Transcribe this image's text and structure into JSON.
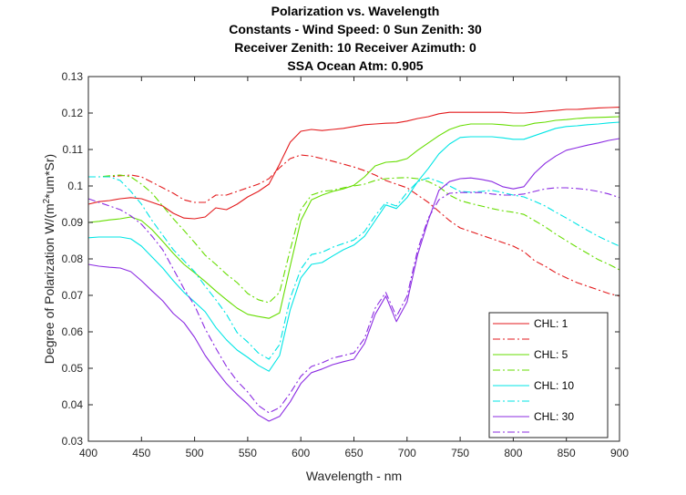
{
  "chart_data": {
    "type": "line",
    "title": [
      "Polarization vs. Wavelength",
      "Constants - Wind Speed: 0 Sun Zenith: 30",
      "Receiver Zenith: 10 Receiver Azimuth: 0",
      "SSA Ocean Atm: 0.905"
    ],
    "xlabel": "Wavelength - nm",
    "ylabel": "Degree of Polarization W/(m²*um*Sr)",
    "xlim": [
      400,
      900
    ],
    "ylim": [
      0.03,
      0.13
    ],
    "xticks": [
      "400",
      "450",
      "500",
      "550",
      "600",
      "650",
      "700",
      "750",
      "800",
      "850",
      "900"
    ],
    "yticks": [
      "0.03",
      "0.04",
      "0.05",
      "0.06",
      "0.07",
      "0.08",
      "0.09",
      "0.1",
      "0.11",
      "0.12",
      "0.13"
    ],
    "grid": false,
    "legend_position": "bottom-right",
    "series": [
      {
        "name": "CHL: 1",
        "color": "#e31a1c",
        "style": "solid",
        "x": [
          400,
          410,
          420,
          430,
          440,
          450,
          460,
          470,
          480,
          490,
          500,
          510,
          520,
          530,
          540,
          550,
          560,
          570,
          580,
          590,
          600,
          610,
          620,
          630,
          640,
          650,
          660,
          670,
          680,
          690,
          700,
          710,
          720,
          730,
          740,
          750,
          760,
          770,
          780,
          790,
          800,
          810,
          820,
          830,
          840,
          850,
          860,
          870,
          880,
          890,
          900
        ],
        "y": [
          0.095,
          0.0957,
          0.096,
          0.0965,
          0.0968,
          0.0965,
          0.0955,
          0.0945,
          0.0925,
          0.0912,
          0.091,
          0.0915,
          0.094,
          0.0935,
          0.095,
          0.097,
          0.0985,
          0.1005,
          0.106,
          0.112,
          0.115,
          0.1155,
          0.1152,
          0.1155,
          0.1158,
          0.1163,
          0.1168,
          0.117,
          0.1172,
          0.1173,
          0.1178,
          0.1185,
          0.119,
          0.1198,
          0.1202,
          0.1202,
          0.1202,
          0.1202,
          0.1202,
          0.1202,
          0.12,
          0.12,
          0.1202,
          0.1205,
          0.1207,
          0.121,
          0.121,
          0.1212,
          0.1214,
          0.1215,
          0.1216
        ]
      },
      {
        "name": "",
        "color": "#e31a1c",
        "style": "dashdot",
        "x": [
          400,
          410,
          420,
          430,
          440,
          450,
          460,
          470,
          480,
          490,
          500,
          510,
          520,
          530,
          540,
          550,
          560,
          570,
          580,
          590,
          600,
          610,
          620,
          630,
          640,
          650,
          660,
          670,
          680,
          690,
          700,
          710,
          720,
          730,
          740,
          750,
          760,
          770,
          780,
          790,
          800,
          810,
          820,
          830,
          840,
          850,
          860,
          870,
          880,
          890,
          900
        ],
        "y": [
          0.1025,
          0.1025,
          0.1025,
          0.1028,
          0.103,
          0.1025,
          0.101,
          0.0995,
          0.098,
          0.0962,
          0.0955,
          0.0955,
          0.0975,
          0.0975,
          0.0985,
          0.0995,
          0.1005,
          0.102,
          0.105,
          0.1075,
          0.1085,
          0.1082,
          0.1075,
          0.1068,
          0.106,
          0.1052,
          0.1042,
          0.103,
          0.1015,
          0.1005,
          0.0995,
          0.0975,
          0.0955,
          0.093,
          0.0905,
          0.0885,
          0.0875,
          0.0865,
          0.0855,
          0.0845,
          0.0835,
          0.082,
          0.0795,
          0.078,
          0.0762,
          0.0748,
          0.0735,
          0.0725,
          0.0715,
          0.0705,
          0.0698
        ]
      },
      {
        "name": "CHL: 5",
        "color": "#66dd00",
        "style": "solid",
        "x": [
          400,
          410,
          420,
          430,
          440,
          450,
          460,
          470,
          480,
          490,
          500,
          510,
          520,
          530,
          540,
          550,
          560,
          570,
          580,
          590,
          600,
          610,
          620,
          630,
          640,
          650,
          660,
          670,
          680,
          690,
          700,
          710,
          720,
          730,
          740,
          750,
          760,
          770,
          780,
          790,
          800,
          810,
          820,
          830,
          840,
          850,
          860,
          870,
          880,
          890,
          900
        ],
        "y": [
          0.09,
          0.0903,
          0.0907,
          0.091,
          0.0915,
          0.0905,
          0.088,
          0.0848,
          0.0815,
          0.0785,
          0.0762,
          0.0738,
          0.0712,
          0.0688,
          0.0665,
          0.0648,
          0.0642,
          0.0637,
          0.0652,
          0.078,
          0.0905,
          0.0962,
          0.0975,
          0.0985,
          0.0992,
          0.1002,
          0.1025,
          0.1055,
          0.1065,
          0.1067,
          0.1075,
          0.1098,
          0.1118,
          0.1138,
          0.1155,
          0.1165,
          0.117,
          0.117,
          0.117,
          0.1168,
          0.1165,
          0.1165,
          0.1172,
          0.1175,
          0.118,
          0.1182,
          0.1185,
          0.1187,
          0.1188,
          0.1189,
          0.119
        ]
      },
      {
        "name": "",
        "color": "#66dd00",
        "style": "dashdot",
        "x": [
          400,
          410,
          420,
          430,
          440,
          450,
          460,
          470,
          480,
          490,
          500,
          510,
          520,
          530,
          540,
          550,
          560,
          570,
          580,
          590,
          600,
          610,
          620,
          630,
          640,
          650,
          660,
          670,
          680,
          690,
          700,
          710,
          720,
          730,
          740,
          750,
          760,
          770,
          780,
          790,
          800,
          810,
          820,
          830,
          840,
          850,
          860,
          870,
          880,
          890,
          900
        ],
        "y": [
          0.1025,
          0.1025,
          0.1028,
          0.103,
          0.1025,
          0.1005,
          0.098,
          0.0945,
          0.091,
          0.0878,
          0.0845,
          0.081,
          0.0785,
          0.0758,
          0.0735,
          0.0705,
          0.0688,
          0.068,
          0.0708,
          0.0825,
          0.0935,
          0.0975,
          0.0985,
          0.0988,
          0.0995,
          0.1,
          0.1005,
          0.1015,
          0.102,
          0.1022,
          0.1023,
          0.102,
          0.1012,
          0.0998,
          0.0975,
          0.096,
          0.0952,
          0.0945,
          0.0938,
          0.0932,
          0.0928,
          0.0922,
          0.0905,
          0.0888,
          0.0868,
          0.085,
          0.0832,
          0.0815,
          0.0798,
          0.0785,
          0.077
        ]
      },
      {
        "name": "CHL: 10",
        "color": "#00e5e5",
        "style": "solid",
        "x": [
          400,
          410,
          420,
          430,
          440,
          450,
          460,
          470,
          480,
          490,
          500,
          510,
          520,
          530,
          540,
          550,
          560,
          570,
          580,
          590,
          600,
          610,
          620,
          630,
          640,
          650,
          660,
          670,
          680,
          690,
          700,
          710,
          720,
          730,
          740,
          750,
          760,
          770,
          780,
          790,
          800,
          810,
          820,
          830,
          840,
          850,
          860,
          870,
          880,
          890,
          900
        ],
        "y": [
          0.0858,
          0.086,
          0.086,
          0.086,
          0.0855,
          0.0835,
          0.0805,
          0.0775,
          0.074,
          0.0708,
          0.0682,
          0.0655,
          0.0612,
          0.0578,
          0.055,
          0.053,
          0.0508,
          0.0492,
          0.0535,
          0.066,
          0.0748,
          0.0785,
          0.079,
          0.0808,
          0.0825,
          0.0838,
          0.0862,
          0.0905,
          0.0948,
          0.0938,
          0.0968,
          0.1012,
          0.1048,
          0.1088,
          0.1115,
          0.1133,
          0.1135,
          0.1135,
          0.1135,
          0.1132,
          0.1128,
          0.1128,
          0.1138,
          0.1148,
          0.1158,
          0.1163,
          0.1165,
          0.1168,
          0.117,
          0.1173,
          0.1175
        ]
      },
      {
        "name": "",
        "color": "#00e5e5",
        "style": "dashdot",
        "x": [
          400,
          410,
          420,
          430,
          440,
          450,
          460,
          470,
          480,
          490,
          500,
          510,
          520,
          530,
          540,
          550,
          560,
          570,
          580,
          590,
          600,
          610,
          620,
          630,
          640,
          650,
          660,
          670,
          680,
          690,
          700,
          710,
          720,
          730,
          740,
          750,
          760,
          770,
          780,
          790,
          800,
          810,
          820,
          830,
          840,
          850,
          860,
          870,
          880,
          890,
          900
        ],
        "y": [
          0.1025,
          0.1025,
          0.1025,
          0.1015,
          0.0985,
          0.095,
          0.0905,
          0.0865,
          0.0825,
          0.0795,
          0.0765,
          0.0725,
          0.0688,
          0.0648,
          0.0598,
          0.0572,
          0.0542,
          0.0525,
          0.0565,
          0.0692,
          0.0772,
          0.0812,
          0.0818,
          0.0832,
          0.0842,
          0.0852,
          0.0875,
          0.0918,
          0.0955,
          0.0945,
          0.0982,
          0.1012,
          0.1022,
          0.1012,
          0.1,
          0.0985,
          0.0983,
          0.0985,
          0.0988,
          0.0982,
          0.0975,
          0.097,
          0.0958,
          0.0945,
          0.0928,
          0.0912,
          0.0895,
          0.0878,
          0.0862,
          0.0848,
          0.0835
        ]
      },
      {
        "name": "CHL: 30",
        "color": "#8b2be2",
        "style": "solid",
        "x": [
          400,
          410,
          420,
          430,
          440,
          450,
          460,
          470,
          480,
          490,
          500,
          510,
          520,
          530,
          540,
          550,
          560,
          570,
          580,
          590,
          600,
          610,
          620,
          630,
          640,
          650,
          660,
          670,
          680,
          690,
          700,
          710,
          720,
          730,
          740,
          750,
          760,
          770,
          780,
          790,
          800,
          810,
          820,
          830,
          840,
          850,
          860,
          870,
          880,
          890,
          900
        ],
        "y": [
          0.0785,
          0.078,
          0.0777,
          0.0775,
          0.0765,
          0.074,
          0.0712,
          0.0685,
          0.065,
          0.0625,
          0.0585,
          0.0535,
          0.0495,
          0.0458,
          0.0428,
          0.0402,
          0.0372,
          0.0355,
          0.0368,
          0.0408,
          0.0458,
          0.0488,
          0.0498,
          0.051,
          0.0518,
          0.0525,
          0.0568,
          0.0648,
          0.0698,
          0.0628,
          0.0682,
          0.0812,
          0.0905,
          0.0988,
          0.1012,
          0.102,
          0.1022,
          0.1018,
          0.1012,
          0.0998,
          0.0992,
          0.0998,
          0.1035,
          0.1062,
          0.1082,
          0.1098,
          0.1105,
          0.1112,
          0.1118,
          0.1125,
          0.113
        ]
      },
      {
        "name": "",
        "color": "#8b2be2",
        "style": "dashdot",
        "x": [
          400,
          410,
          420,
          430,
          440,
          450,
          460,
          470,
          480,
          490,
          500,
          510,
          520,
          530,
          540,
          550,
          560,
          570,
          580,
          590,
          600,
          610,
          620,
          630,
          640,
          650,
          660,
          670,
          680,
          690,
          700,
          710,
          720,
          730,
          740,
          750,
          760,
          770,
          780,
          790,
          800,
          810,
          820,
          830,
          840,
          850,
          860,
          870,
          880,
          890,
          900
        ],
        "y": [
          0.0965,
          0.0955,
          0.0945,
          0.0935,
          0.0918,
          0.0895,
          0.0862,
          0.0825,
          0.0772,
          0.0718,
          0.0672,
          0.0608,
          0.0555,
          0.0505,
          0.0465,
          0.0435,
          0.0398,
          0.0378,
          0.0392,
          0.0432,
          0.0478,
          0.0505,
          0.0515,
          0.0528,
          0.0535,
          0.0542,
          0.0582,
          0.0665,
          0.0708,
          0.0642,
          0.0698,
          0.0825,
          0.0912,
          0.0962,
          0.098,
          0.0982,
          0.0982,
          0.0982,
          0.0978,
          0.0975,
          0.0975,
          0.0978,
          0.0985,
          0.0992,
          0.0995,
          0.0995,
          0.0993,
          0.099,
          0.0985,
          0.0978,
          0.0968
        ]
      }
    ],
    "legend": {
      "entries": [
        {
          "label": "CHL: 1",
          "color": "#e31a1c",
          "style": "solid"
        },
        {
          "label": "",
          "color": "#e31a1c",
          "style": "dashdot"
        },
        {
          "label": "CHL: 5",
          "color": "#66dd00",
          "style": "solid"
        },
        {
          "label": "",
          "color": "#66dd00",
          "style": "dashdot"
        },
        {
          "label": "CHL: 10",
          "color": "#00e5e5",
          "style": "solid"
        },
        {
          "label": "",
          "color": "#00e5e5",
          "style": "dashdot"
        },
        {
          "label": "CHL: 30",
          "color": "#8b2be2",
          "style": "solid"
        },
        {
          "label": "",
          "color": "#8b2be2",
          "style": "dashdot"
        }
      ]
    }
  }
}
